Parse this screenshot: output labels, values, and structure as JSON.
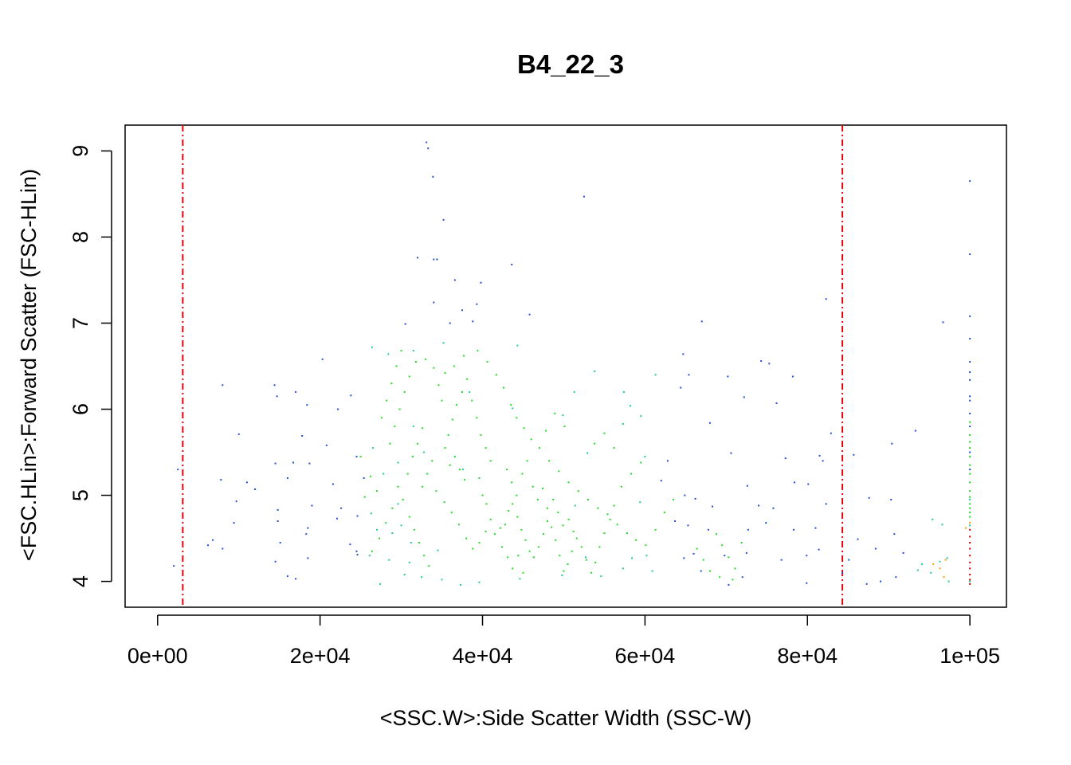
{
  "chart_data": {
    "type": "scatter",
    "title": "B4_22_3",
    "xlabel": "<SSC.W>:Side Scatter Width (SSC-W)",
    "ylabel": "<FSC.HLin>:Forward Scatter (FSC-HLin)",
    "xlim": [
      -4000,
      104500
    ],
    "ylim": [
      3.7,
      9.3
    ],
    "x_ticks": [
      {
        "value": 0,
        "label": "0e+00"
      },
      {
        "value": 20000,
        "label": "2e+04"
      },
      {
        "value": 40000,
        "label": "4e+04"
      },
      {
        "value": 60000,
        "label": "6e+04"
      },
      {
        "value": 80000,
        "label": "8e+04"
      },
      {
        "value": 100000,
        "label": "1e+05"
      }
    ],
    "y_ticks": [
      {
        "value": 4,
        "label": "4"
      },
      {
        "value": 5,
        "label": "5"
      },
      {
        "value": 6,
        "label": "6"
      },
      {
        "value": 7,
        "label": "7"
      },
      {
        "value": 8,
        "label": "8"
      },
      {
        "value": 9,
        "label": "9"
      }
    ],
    "gate_lines": [
      3100,
      84300
    ],
    "colors": {
      "gate": "#e8000b",
      "low_density": "#1f4fd6",
      "mid_density": "#1fc8a0",
      "high_density": "#22dd22",
      "peak_density": "#d40000",
      "warm_density": "#f0a000"
    },
    "points": [
      [
        33100,
        9.1
      ],
      [
        33300,
        9.03
      ],
      [
        33900,
        8.7
      ],
      [
        52500,
        8.47
      ],
      [
        100000,
        8.65
      ],
      [
        35200,
        8.2
      ],
      [
        100000,
        7.8
      ],
      [
        32000,
        7.76
      ],
      [
        34000,
        7.74
      ],
      [
        34400,
        7.74
      ],
      [
        43600,
        7.68
      ],
      [
        36600,
        7.5
      ],
      [
        39800,
        7.47
      ],
      [
        82300,
        7.28
      ],
      [
        34000,
        7.24
      ],
      [
        39300,
        7.22
      ],
      [
        37500,
        7.15
      ],
      [
        30500,
        6.99
      ],
      [
        100000,
        7.08
      ],
      [
        36000,
        7.0
      ],
      [
        96700,
        7.01
      ],
      [
        67000,
        7.02
      ],
      [
        38800,
        7.02
      ],
      [
        45800,
        7.1
      ],
      [
        100000,
        6.82
      ],
      [
        31500,
        6.68
      ],
      [
        44300,
        6.74
      ],
      [
        64700,
        6.64
      ],
      [
        28400,
        6.64
      ],
      [
        26400,
        6.72
      ],
      [
        35200,
        6.77
      ],
      [
        100000,
        6.55
      ],
      [
        74300,
        6.56
      ],
      [
        75300,
        6.53
      ],
      [
        20300,
        6.58
      ],
      [
        53800,
        6.44
      ],
      [
        100000,
        6.43
      ],
      [
        61300,
        6.4
      ],
      [
        65400,
        6.4
      ],
      [
        78200,
        6.38
      ],
      [
        70200,
        6.38
      ],
      [
        100000,
        6.34
      ],
      [
        8000,
        6.28
      ],
      [
        14400,
        6.28
      ],
      [
        17000,
        6.2
      ],
      [
        38400,
        6.2
      ],
      [
        23800,
        6.16
      ],
      [
        100000,
        6.15
      ],
      [
        64400,
        6.25
      ],
      [
        72200,
        6.14
      ],
      [
        76200,
        6.07
      ],
      [
        14700,
        6.15
      ],
      [
        51300,
        6.2
      ],
      [
        57400,
        6.2
      ],
      [
        58200,
        6.04
      ],
      [
        59500,
        5.92
      ],
      [
        43700,
        6.01
      ],
      [
        22200,
        6.0
      ],
      [
        18400,
        6.05
      ],
      [
        100000,
        6.1
      ],
      [
        49900,
        5.93
      ],
      [
        57300,
        5.83
      ],
      [
        31500,
        5.8
      ],
      [
        68000,
        5.84
      ],
      [
        100000,
        5.95
      ],
      [
        10000,
        5.71
      ],
      [
        17800,
        5.69
      ],
      [
        20800,
        5.58
      ],
      [
        26500,
        5.55
      ],
      [
        82900,
        5.72
      ],
      [
        93300,
        5.75
      ],
      [
        90400,
        5.6
      ],
      [
        100000,
        5.8
      ],
      [
        52900,
        5.49
      ],
      [
        60000,
        5.45
      ],
      [
        62800,
        5.4
      ],
      [
        70600,
        5.49
      ],
      [
        77300,
        5.43
      ],
      [
        81500,
        5.46
      ],
      [
        81900,
        5.4
      ],
      [
        85700,
        5.47
      ],
      [
        2500,
        5.3
      ],
      [
        14500,
        5.37
      ],
      [
        16700,
        5.38
      ],
      [
        18700,
        5.37
      ],
      [
        24500,
        5.45
      ],
      [
        27800,
        5.25
      ],
      [
        29600,
        5.38
      ],
      [
        32800,
        5.5
      ],
      [
        100000,
        5.5
      ],
      [
        7800,
        5.18
      ],
      [
        11000,
        5.15
      ],
      [
        12000,
        5.07
      ],
      [
        16000,
        5.2
      ],
      [
        21600,
        5.13
      ],
      [
        25400,
        5.2
      ],
      [
        37600,
        5.3
      ],
      [
        62000,
        5.17
      ],
      [
        64900,
        5.0
      ],
      [
        72600,
        5.11
      ],
      [
        78400,
        5.15
      ],
      [
        80100,
        5.13
      ],
      [
        100000,
        5.3
      ],
      [
        9700,
        4.93
      ],
      [
        14800,
        4.83
      ],
      [
        19000,
        4.88
      ],
      [
        22600,
        4.85
      ],
      [
        24600,
        4.76
      ],
      [
        26300,
        4.79
      ],
      [
        29600,
        4.9
      ],
      [
        30000,
        4.65
      ],
      [
        51400,
        4.88
      ],
      [
        59400,
        4.92
      ],
      [
        66200,
        4.96
      ],
      [
        68300,
        4.87
      ],
      [
        74000,
        4.88
      ],
      [
        75800,
        4.85
      ],
      [
        82300,
        4.9
      ],
      [
        87600,
        4.97
      ],
      [
        90300,
        4.95
      ],
      [
        100000,
        4.95
      ],
      [
        9400,
        4.68
      ],
      [
        14800,
        4.7
      ],
      [
        18500,
        4.62
      ],
      [
        22100,
        4.73
      ],
      [
        27000,
        4.6
      ],
      [
        28900,
        4.56
      ],
      [
        31200,
        4.45
      ],
      [
        63700,
        4.7
      ],
      [
        65300,
        4.65
      ],
      [
        67800,
        4.6
      ],
      [
        72700,
        4.6
      ],
      [
        74900,
        4.68
      ],
      [
        78300,
        4.6
      ],
      [
        81000,
        4.62
      ],
      [
        86200,
        4.49
      ],
      [
        88400,
        4.38
      ],
      [
        90700,
        4.55
      ],
      [
        95400,
        4.72
      ],
      [
        96600,
        4.66
      ],
      [
        100000,
        4.65
      ],
      [
        6200,
        4.42
      ],
      [
        6800,
        4.48
      ],
      [
        8000,
        4.38
      ],
      [
        15100,
        4.45
      ],
      [
        18300,
        4.55
      ],
      [
        23700,
        4.43
      ],
      [
        24500,
        4.35
      ],
      [
        26100,
        4.3
      ],
      [
        28500,
        4.25
      ],
      [
        31000,
        4.22
      ],
      [
        34500,
        4.36
      ],
      [
        52700,
        4.28
      ],
      [
        58400,
        4.27
      ],
      [
        60200,
        4.3
      ],
      [
        64800,
        4.27
      ],
      [
        66000,
        4.32
      ],
      [
        69800,
        4.3
      ],
      [
        72500,
        4.33
      ],
      [
        76800,
        4.25
      ],
      [
        79900,
        4.3
      ],
      [
        81400,
        4.37
      ],
      [
        85100,
        4.25
      ],
      [
        91800,
        4.33
      ],
      [
        94100,
        4.2
      ],
      [
        96300,
        4.23
      ],
      [
        97200,
        4.27
      ],
      [
        100000,
        4.45
      ],
      [
        2000,
        4.18
      ],
      [
        14500,
        4.23
      ],
      [
        18500,
        4.27
      ],
      [
        24600,
        4.31
      ],
      [
        27400,
        3.97
      ],
      [
        30400,
        4.08
      ],
      [
        32500,
        4.05
      ],
      [
        35000,
        4.02
      ],
      [
        37300,
        3.96
      ],
      [
        39600,
        3.99
      ],
      [
        44600,
        4.03
      ],
      [
        49800,
        4.07
      ],
      [
        54600,
        4.06
      ],
      [
        57300,
        4.15
      ],
      [
        60900,
        4.12
      ],
      [
        66900,
        4.12
      ],
      [
        70300,
        3.96
      ],
      [
        72000,
        4.05
      ],
      [
        79900,
        3.98
      ],
      [
        84300,
        4.1
      ],
      [
        87300,
        3.97
      ],
      [
        89000,
        4.0
      ],
      [
        90900,
        4.05
      ],
      [
        93600,
        4.13
      ],
      [
        95200,
        4.1
      ],
      [
        97400,
        4.0
      ],
      [
        100000,
        4.0
      ],
      [
        16000,
        4.06
      ],
      [
        17000,
        4.03
      ]
    ],
    "cluster_points": [
      [
        39600,
        5.2
      ],
      [
        40000,
        5.0
      ],
      [
        40500,
        4.9
      ],
      [
        41000,
        4.72
      ],
      [
        41500,
        4.55
      ],
      [
        42200,
        4.62
      ],
      [
        42800,
        4.66
      ],
      [
        43200,
        4.82
      ],
      [
        43700,
        4.9
      ],
      [
        44300,
        4.75
      ],
      [
        44800,
        4.6
      ],
      [
        45300,
        4.48
      ],
      [
        45800,
        4.35
      ],
      [
        46300,
        4.28
      ],
      [
        46900,
        4.4
      ],
      [
        47500,
        4.55
      ],
      [
        48000,
        4.7
      ],
      [
        48500,
        4.63
      ],
      [
        49000,
        4.48
      ],
      [
        49500,
        4.3
      ],
      [
        50000,
        4.12
      ],
      [
        50500,
        4.2
      ],
      [
        51000,
        4.35
      ],
      [
        51600,
        4.5
      ],
      [
        52200,
        4.4
      ],
      [
        52800,
        4.25
      ],
      [
        53400,
        4.1
      ],
      [
        53900,
        4.22
      ],
      [
        54400,
        4.4
      ],
      [
        55000,
        4.56
      ],
      [
        55700,
        4.72
      ],
      [
        56200,
        4.88
      ],
      [
        36000,
        5.35
      ],
      [
        36600,
        5.45
      ],
      [
        37200,
        5.3
      ],
      [
        37800,
        5.18
      ],
      [
        35400,
        5.55
      ],
      [
        35800,
        5.7
      ],
      [
        36300,
        5.88
      ],
      [
        36800,
        6.05
      ],
      [
        37500,
        6.2
      ],
      [
        38100,
        6.35
      ],
      [
        35000,
        6.1
      ],
      [
        34600,
        6.28
      ],
      [
        38700,
        6.1
      ],
      [
        39300,
        5.9
      ],
      [
        39800,
        5.7
      ],
      [
        40400,
        5.55
      ],
      [
        41000,
        5.4
      ],
      [
        33800,
        5.4
      ],
      [
        33200,
        5.25
      ],
      [
        32600,
        5.1
      ],
      [
        34300,
        5.05
      ],
      [
        35300,
        4.92
      ],
      [
        36200,
        4.8
      ],
      [
        37100,
        4.66
      ],
      [
        38000,
        4.5
      ],
      [
        38800,
        4.38
      ],
      [
        39600,
        4.45
      ],
      [
        40400,
        4.58
      ],
      [
        43000,
        5.3
      ],
      [
        43600,
        5.15
      ],
      [
        44200,
        5.0
      ],
      [
        44900,
        5.25
      ],
      [
        45500,
        5.4
      ],
      [
        46200,
        5.1
      ],
      [
        46800,
        4.95
      ],
      [
        47400,
        5.08
      ],
      [
        48000,
        4.85
      ],
      [
        48700,
        4.95
      ],
      [
        49300,
        4.8
      ],
      [
        49900,
        4.65
      ],
      [
        50600,
        4.72
      ],
      [
        51200,
        4.58
      ],
      [
        42400,
        4.4
      ],
      [
        43100,
        4.28
      ],
      [
        43700,
        4.15
      ],
      [
        44400,
        4.3
      ],
      [
        45000,
        4.1
      ],
      [
        31000,
        4.75
      ],
      [
        31600,
        4.6
      ],
      [
        32200,
        4.45
      ],
      [
        32800,
        4.3
      ],
      [
        33400,
        4.18
      ],
      [
        30200,
        4.95
      ],
      [
        29600,
        5.1
      ],
      [
        30800,
        5.25
      ],
      [
        31400,
        5.45
      ],
      [
        32000,
        5.6
      ],
      [
        32600,
        5.78
      ],
      [
        28600,
        5.6
      ],
      [
        29200,
        5.8
      ],
      [
        29800,
        6.0
      ],
      [
        30400,
        6.2
      ],
      [
        31000,
        6.38
      ],
      [
        31800,
        6.55
      ],
      [
        27600,
        5.9
      ],
      [
        28200,
        6.1
      ],
      [
        28800,
        6.3
      ],
      [
        29400,
        6.5
      ],
      [
        30000,
        6.68
      ],
      [
        33000,
        6.58
      ],
      [
        34000,
        6.48
      ],
      [
        35400,
        6.42
      ],
      [
        36500,
        6.5
      ],
      [
        37700,
        6.62
      ],
      [
        39400,
        6.68
      ],
      [
        40600,
        6.55
      ],
      [
        41700,
        6.4
      ],
      [
        42600,
        6.25
      ],
      [
        43500,
        6.05
      ],
      [
        44200,
        5.9
      ],
      [
        45100,
        5.78
      ],
      [
        46000,
        5.65
      ],
      [
        47000,
        5.55
      ],
      [
        48200,
        5.4
      ],
      [
        49400,
        5.28
      ],
      [
        50600,
        5.15
      ],
      [
        51800,
        5.05
      ],
      [
        53000,
        4.95
      ],
      [
        54200,
        4.85
      ],
      [
        55400,
        4.78
      ],
      [
        56600,
        4.66
      ],
      [
        57800,
        4.56
      ],
      [
        58900,
        4.48
      ],
      [
        60100,
        4.42
      ],
      [
        61300,
        4.6
      ],
      [
        62400,
        4.8
      ],
      [
        63500,
        4.95
      ],
      [
        57100,
        5.1
      ],
      [
        58300,
        5.25
      ],
      [
        59500,
        5.38
      ],
      [
        53800,
        5.6
      ],
      [
        55000,
        5.72
      ],
      [
        56200,
        5.55
      ],
      [
        47800,
        5.75
      ],
      [
        48900,
        5.95
      ],
      [
        50100,
        5.8
      ],
      [
        26400,
        4.35
      ],
      [
        27300,
        4.5
      ],
      [
        28100,
        4.68
      ],
      [
        28900,
        4.85
      ],
      [
        27000,
        5.05
      ],
      [
        26200,
        5.22
      ],
      [
        25500,
        4.98
      ],
      [
        25000,
        5.45
      ],
      [
        68800,
        4.55
      ],
      [
        69500,
        4.42
      ],
      [
        70300,
        4.28
      ],
      [
        71100,
        4.15
      ],
      [
        68000,
        4.12
      ],
      [
        69200,
        4.05
      ],
      [
        70800,
        4.02
      ],
      [
        67200,
        4.25
      ],
      [
        66400,
        4.38
      ],
      [
        71900,
        4.45
      ],
      [
        100000,
        5.45
      ],
      [
        100000,
        5.55
      ],
      [
        100000,
        5.62
      ],
      [
        100000,
        5.35
      ],
      [
        100000,
        5.25
      ],
      [
        100000,
        5.15
      ],
      [
        100000,
        5.05
      ],
      [
        100000,
        4.98
      ],
      [
        100000,
        4.9
      ],
      [
        100000,
        4.85
      ],
      [
        100000,
        4.8
      ],
      [
        100000,
        4.75
      ],
      [
        100000,
        5.7
      ],
      [
        100000,
        5.85
      ]
    ],
    "peak_points": [
      [
        100000,
        4.6
      ],
      [
        100000,
        4.52
      ],
      [
        100000,
        4.45
      ],
      [
        100000,
        4.38
      ],
      [
        100000,
        4.3
      ],
      [
        100000,
        4.22
      ],
      [
        100000,
        4.15
      ],
      [
        100000,
        4.08
      ],
      [
        100000,
        4.02
      ],
      [
        100000,
        3.97
      ]
    ],
    "warm_points": [
      [
        100000,
        4.68
      ],
      [
        99500,
        4.62
      ],
      [
        97000,
        4.25
      ],
      [
        96300,
        4.15
      ],
      [
        95500,
        4.2
      ],
      [
        96800,
        4.05
      ]
    ]
  }
}
